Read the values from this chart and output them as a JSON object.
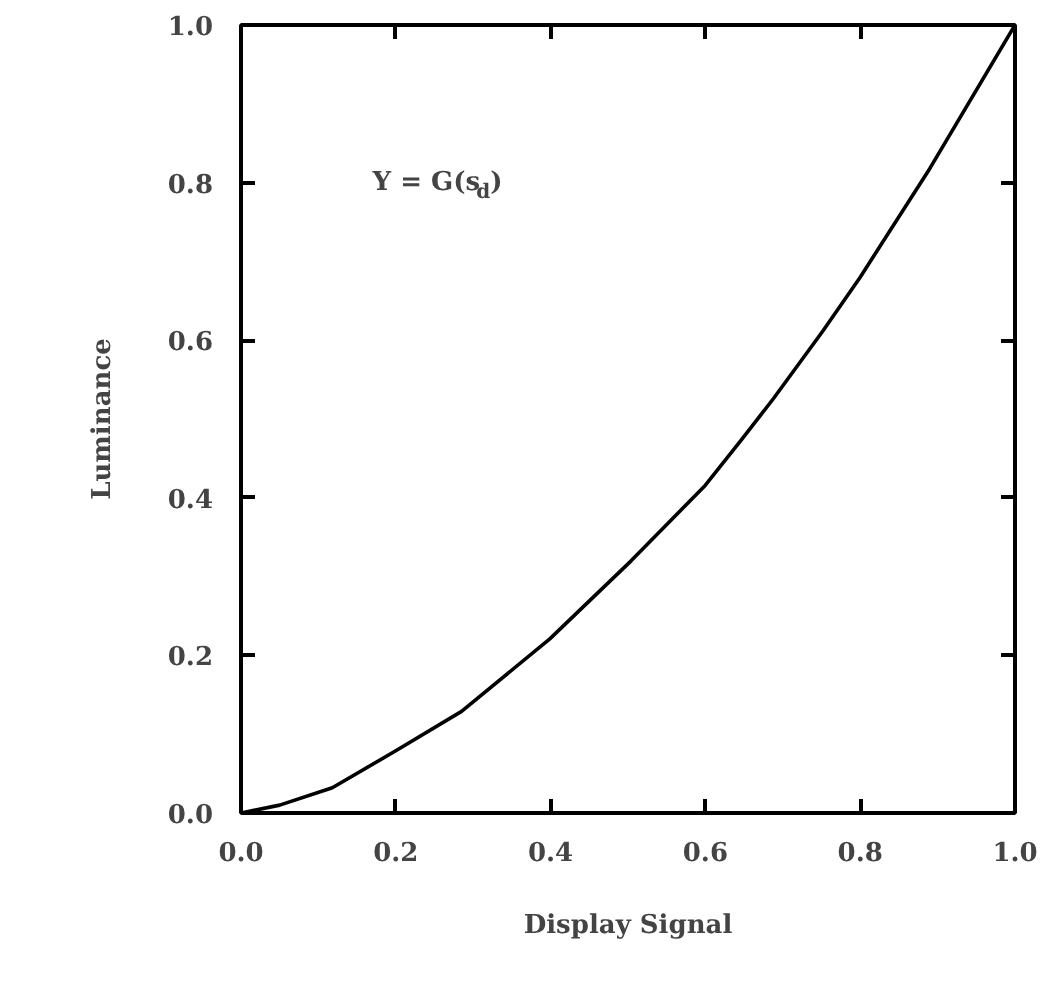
{
  "chart_data": {
    "type": "line",
    "xlabel": "Display Signal",
    "ylabel": "Luminance",
    "annotations": [
      "Y = G(s$_{d}$)"
    ],
    "x": [
      0,
      0.05,
      0.118,
      0.2,
      0.285,
      0.399,
      0.504,
      0.6,
      0.647,
      0.688,
      0.752,
      0.8,
      0.89,
      1.0
    ],
    "series": [
      {
        "color": "#000000",
        "values": [
          0,
          0.01,
          0.032,
          0.079,
          0.129,
          0.221,
          0.32,
          0.416,
          0.474,
          0.526,
          0.612,
          0.68,
          0.818,
          1.0
        ]
      }
    ],
    "xlim": [
      0,
      1
    ],
    "ylim": [
      0,
      1
    ],
    "xticks": [
      {
        "value": 0,
        "label": "0.0"
      },
      {
        "value": 0.2,
        "label": "0.2"
      },
      {
        "value": 0.4,
        "label": "0.4"
      },
      {
        "value": 0.6,
        "label": "0.6"
      },
      {
        "value": 0.8,
        "label": "0.8"
      },
      {
        "value": 1,
        "label": "1.0"
      }
    ],
    "yticks": [
      {
        "value": 0,
        "label": "0.0"
      },
      {
        "value": 0.2,
        "label": "0.2"
      },
      {
        "value": 0.4,
        "label": "0.4"
      },
      {
        "value": 0.6,
        "label": "0.6"
      },
      {
        "value": 0.8,
        "label": "0.8"
      },
      {
        "value": 1,
        "label": "1.0"
      }
    ],
    "grid": false,
    "marker": "none",
    "line_style": "solid"
  }
}
